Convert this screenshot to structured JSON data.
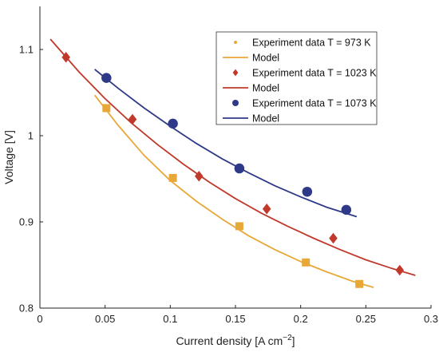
{
  "chart_data": {
    "type": "scatter",
    "xlabel": "Current density [A cm",
    "xlabel_sup": "−2",
    "xlabel_end": "]",
    "ylabel": "Voltage [V]",
    "xlim": [
      0,
      0.3
    ],
    "ylim": [
      0.8,
      1.15
    ],
    "x_ticks": [
      0,
      0.05,
      0.1,
      0.15,
      0.2,
      0.25,
      0.3
    ],
    "x_tick_labels": [
      "0",
      "0.05",
      "0.1",
      "0.15",
      "0.2",
      "0.25",
      "0.3"
    ],
    "y_ticks": [
      0.8,
      0.9,
      1.0,
      1.1
    ],
    "y_tick_labels": [
      "0.8",
      "0.9",
      "1",
      "1.1"
    ],
    "grid": false,
    "legend_position": "top-right",
    "series": [
      {
        "name": "Experiment data T = 973 K",
        "kind": "markers",
        "marker": "square",
        "legend_marker": "dot",
        "color": "#E8A838",
        "points": [
          [
            0.051,
            1.032
          ],
          [
            0.102,
            0.951
          ],
          [
            0.153,
            0.895
          ],
          [
            0.204,
            0.853
          ],
          [
            0.245,
            0.828
          ]
        ]
      },
      {
        "name": "Model",
        "kind": "line",
        "color": "#E8A838",
        "points": [
          [
            0.042,
            1.047
          ],
          [
            0.06,
            1.012
          ],
          [
            0.08,
            0.977
          ],
          [
            0.1,
            0.948
          ],
          [
            0.12,
            0.924
          ],
          [
            0.14,
            0.903
          ],
          [
            0.16,
            0.884
          ],
          [
            0.18,
            0.868
          ],
          [
            0.2,
            0.854
          ],
          [
            0.22,
            0.842
          ],
          [
            0.24,
            0.831
          ],
          [
            0.256,
            0.824
          ]
        ]
      },
      {
        "name": "Experiment data T = 1023 K",
        "kind": "markers",
        "marker": "diamond",
        "color": "#C0392B",
        "points": [
          [
            0.02,
            1.091
          ],
          [
            0.071,
            1.019
          ],
          [
            0.122,
            0.953
          ],
          [
            0.174,
            0.915
          ],
          [
            0.225,
            0.881
          ],
          [
            0.276,
            0.844
          ]
        ]
      },
      {
        "name": "Model",
        "kind": "line",
        "color": "#C0392B",
        "points": [
          [
            0.008,
            1.112
          ],
          [
            0.03,
            1.074
          ],
          [
            0.05,
            1.043
          ],
          [
            0.07,
            1.015
          ],
          [
            0.09,
            0.99
          ],
          [
            0.11,
            0.967
          ],
          [
            0.13,
            0.946
          ],
          [
            0.15,
            0.927
          ],
          [
            0.17,
            0.91
          ],
          [
            0.19,
            0.895
          ],
          [
            0.21,
            0.881
          ],
          [
            0.23,
            0.868
          ],
          [
            0.25,
            0.856
          ],
          [
            0.27,
            0.846
          ],
          [
            0.288,
            0.838
          ]
        ]
      },
      {
        "name": "Experiment data T = 1073 K",
        "kind": "markers",
        "marker": "circle",
        "color": "#2E3A87",
        "points": [
          [
            0.051,
            1.067
          ],
          [
            0.102,
            1.014
          ],
          [
            0.153,
            0.962
          ],
          [
            0.205,
            0.935
          ],
          [
            0.235,
            0.914
          ]
        ]
      },
      {
        "name": "Model",
        "kind": "line",
        "color": "#2E3A87",
        "points": [
          [
            0.042,
            1.077
          ],
          [
            0.06,
            1.055
          ],
          [
            0.08,
            1.032
          ],
          [
            0.1,
            1.011
          ],
          [
            0.12,
            0.991
          ],
          [
            0.14,
            0.973
          ],
          [
            0.16,
            0.957
          ],
          [
            0.18,
            0.942
          ],
          [
            0.2,
            0.929
          ],
          [
            0.22,
            0.917
          ],
          [
            0.243,
            0.906
          ]
        ]
      }
    ]
  }
}
